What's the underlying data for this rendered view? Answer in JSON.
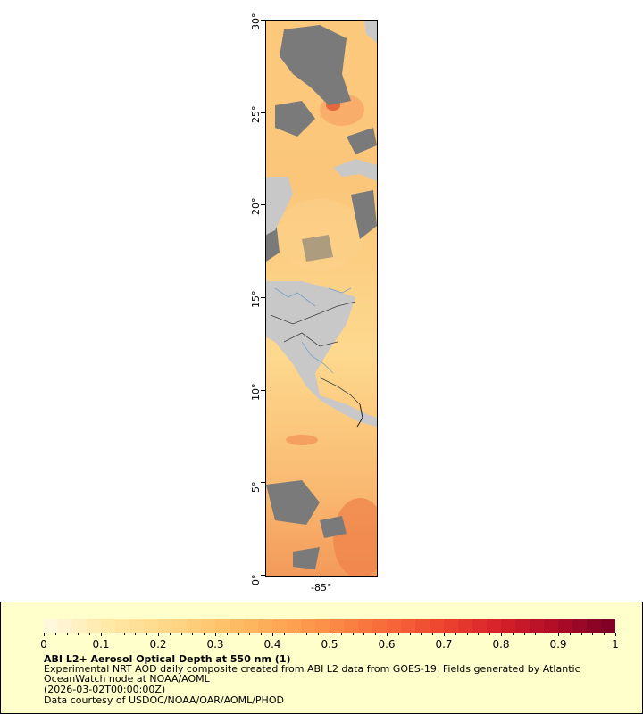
{
  "map": {
    "y_ticks": [
      "30°",
      "25°",
      "20°",
      "15°",
      "10°",
      "5°",
      "0°"
    ],
    "x_ticks": [
      "-85°"
    ],
    "colors": {
      "land": "#c8c8c8",
      "no_data": "#7a7a7a",
      "borders": "#404040",
      "rivers": "#7aa0c8"
    }
  },
  "legend": {
    "title": "ABI L2+ Aerosol Optical Depth at 550 nm (1)",
    "description_line1": "Experimental NRT AOD daily composite created from ABI L2 data from GOES-19. Fields generated by Atlantic",
    "description_line2": "OceanWatch node at NOAA/AOML",
    "date": "(2026-03-02T00:00:00Z)",
    "credit": "Data courtesy of USDOC/NOAA/OAR/AOML/PHOD",
    "tick_labels": [
      "0",
      "0.1",
      "0.2",
      "0.3",
      "0.4",
      "0.5",
      "0.6",
      "0.7",
      "0.8",
      "0.9",
      "1"
    ],
    "colorbar_colors": [
      "#fff8dc",
      "#ffe9a8",
      "#fed98a",
      "#fdc46c",
      "#fdaa55",
      "#fc8d47",
      "#f86a3a",
      "#ee4530",
      "#d7222a",
      "#b30d27",
      "#800026"
    ]
  }
}
